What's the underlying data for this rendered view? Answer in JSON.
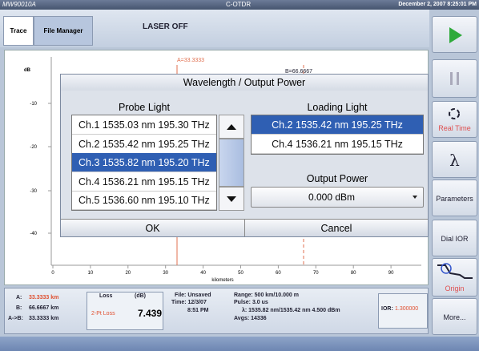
{
  "title_bar": {
    "model": "MW90010A",
    "app": "C-OTDR",
    "datetime": "December 2, 2007 8:25:01 PM"
  },
  "tabs": [
    "Trace",
    "File Manager"
  ],
  "status": "LASER OFF",
  "sidebar": {
    "real_time": "Real Time",
    "lambda": "λ",
    "parameters": "Parameters",
    "dial_ior": "Dial IOR",
    "origin": "Origin",
    "more": "More..."
  },
  "graph": {
    "y_unit": "dB",
    "yticks": [
      "-10",
      "-20",
      "-30",
      "-40"
    ],
    "xticks": [
      "0",
      "10",
      "20",
      "30",
      "40",
      "50",
      "60",
      "70",
      "80",
      "90"
    ],
    "x_label": "kilometers",
    "cursor_a": "A=33.3333",
    "cursor_b": "B=66.6667"
  },
  "dialog": {
    "title": "Wavelength / Output Power",
    "probe": {
      "label": "Probe Light",
      "items": [
        "Ch.1 1535.03 nm 195.30 THz",
        "Ch.2 1535.42 nm 195.25 THz",
        "Ch.3 1535.82 nm 195.20 THz",
        "Ch.4 1536.21 nm 195.15 THz",
        "Ch.5 1536.60 nm 195.10 THz"
      ]
    },
    "loading": {
      "label": "Loading Light",
      "items": [
        "Ch.2 1535.42 nm 195.25 THz",
        "Ch.4 1536.21 nm 195.15 THz"
      ]
    },
    "output": {
      "label": "Output Power",
      "value": "0.000 dBm"
    },
    "ok": "OK",
    "cancel": "Cancel"
  },
  "info": {
    "a_label": "A:",
    "a_value": "33.3333 km",
    "b_label": "B:",
    "b_value": "66.6667 km",
    "ab_label": "A->B:",
    "ab_value": "33.3333 km",
    "loss_header": "Loss",
    "loss_unit": "(dB)",
    "loss_type": "2-Pt Loss",
    "loss_value": "7.439",
    "file": [
      "File: Unsaved",
      "Time: 12/3/07",
      "8:51 PM"
    ],
    "params": [
      "Range: 500 km/10.000 m",
      "Pulse: 3.0 us",
      "λ: 1535.82 nm/1535.42 nm 4.500 dBm",
      "Avgs: 14336"
    ],
    "ior_label": "IOR:",
    "ior_value": "1.300000"
  }
}
